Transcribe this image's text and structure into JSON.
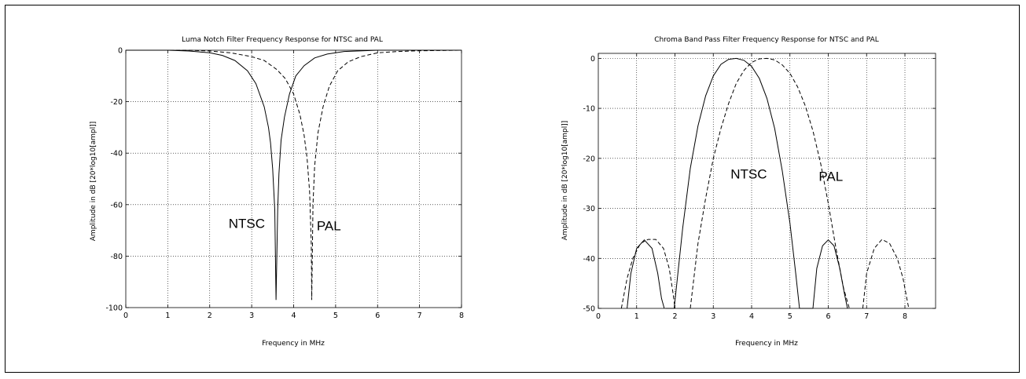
{
  "chart_data": [
    {
      "type": "line",
      "title": "Luma Notch Filter Frequency Response for NTSC and PAL",
      "xlabel": "Frequency in MHz",
      "ylabel": "Amplitude in dB [20*log10[ampl]]",
      "xlim": [
        0,
        8
      ],
      "ylim": [
        -100,
        0
      ],
      "xticks": [
        0,
        1,
        2,
        3,
        4,
        5,
        6,
        7,
        8
      ],
      "yticks": [
        0,
        -20,
        -40,
        -60,
        -80,
        -100
      ],
      "grid": true,
      "annotations": [
        {
          "text": "NTSC",
          "x": 2.45,
          "y": -69
        },
        {
          "text": "PAL",
          "x": 4.55,
          "y": -70
        }
      ],
      "series": [
        {
          "label": "NTSC",
          "style": "solid",
          "x": [
            0,
            1.0,
            1.5,
            2.0,
            2.3,
            2.6,
            2.9,
            3.1,
            3.3,
            3.4,
            3.45,
            3.5,
            3.55,
            3.58,
            3.58,
            3.62,
            3.65,
            3.7,
            3.78,
            3.9,
            4.05,
            4.25,
            4.5,
            4.8,
            5.2,
            6.0,
            8.0
          ],
          "y": [
            0,
            0,
            -0.3,
            -1,
            -2,
            -4,
            -8,
            -13,
            -22,
            -30,
            -36,
            -46,
            -62,
            -97,
            -97,
            -62,
            -48,
            -35,
            -26,
            -17,
            -10,
            -6,
            -3,
            -1.5,
            -0.5,
            0,
            0
          ]
        },
        {
          "label": "PAL",
          "style": "dashed",
          "x": [
            0,
            1.5,
            2.0,
            2.5,
            3.0,
            3.3,
            3.6,
            3.8,
            4.0,
            4.15,
            4.25,
            4.32,
            4.38,
            4.42,
            4.43,
            4.43,
            4.46,
            4.5,
            4.58,
            4.7,
            4.85,
            5.05,
            5.3,
            5.6,
            6.0,
            6.5,
            7.0,
            8.0
          ],
          "y": [
            0,
            0,
            -0.3,
            -1,
            -2.5,
            -4,
            -7.5,
            -11,
            -17,
            -25,
            -33,
            -42,
            -55,
            -75,
            -97,
            -97,
            -60,
            -45,
            -32,
            -22,
            -14,
            -8,
            -4.5,
            -2.5,
            -1,
            -0.5,
            -0.2,
            0
          ]
        }
      ]
    },
    {
      "type": "line",
      "title": "Chroma Band Pass Filter Frequency Response for NTSC and PAL",
      "xlabel": "Frequency in MHz",
      "ylabel": "Amplitude in dB [20*log10[ampl]]",
      "xlim": [
        0,
        8.8
      ],
      "ylim": [
        -50,
        1
      ],
      "xticks": [
        0,
        1,
        2,
        3,
        4,
        5,
        6,
        7,
        8
      ],
      "yticks": [
        0,
        -10,
        -20,
        -30,
        -40,
        -50
      ],
      "grid": true,
      "annotations": [
        {
          "text": "NTSC",
          "x": 3.45,
          "y": -24
        },
        {
          "text": "PAL",
          "x": 5.75,
          "y": -24.5
        }
      ],
      "series": [
        {
          "label": "NTSC",
          "style": "solid",
          "segments": [
            {
              "x": [
                0.75,
                0.85,
                1.0,
                1.2,
                1.4,
                1.55,
                1.65,
                1.72
              ],
              "y": [
                -50,
                -43,
                -38,
                -36.3,
                -38,
                -43,
                -48,
                -50
              ]
            },
            {
              "x": [
                1.75,
                1.75,
                1.98,
                1.98
              ],
              "y": [
                -50,
                -50,
                -50,
                -50
              ]
            },
            {
              "x": [
                1.98,
                2.2,
                2.4,
                2.6,
                2.8,
                3.0,
                3.2,
                3.4,
                3.6,
                3.8,
                4.0,
                4.2,
                4.4,
                4.6,
                4.8,
                5.0,
                5.15,
                5.25
              ],
              "y": [
                -50,
                -34,
                -22,
                -13.5,
                -7.5,
                -3.5,
                -1.2,
                -0.2,
                0,
                -0.4,
                -1.6,
                -4,
                -8,
                -14,
                -22.5,
                -33,
                -43,
                -50
              ]
            },
            {
              "x": [
                5.25,
                5.6
              ],
              "y": [
                -50,
                -50
              ]
            },
            {
              "x": [
                5.6,
                5.7,
                5.85,
                6.0,
                6.15,
                6.3,
                6.42,
                6.5
              ],
              "y": [
                -50,
                -42,
                -37.5,
                -36.3,
                -37.5,
                -42,
                -47,
                -50
              ]
            }
          ]
        },
        {
          "label": "PAL",
          "style": "dashed",
          "segments": [
            {
              "x": [
                0.6,
                0.75,
                0.9,
                1.1,
                1.3,
                1.5,
                1.7,
                1.85,
                1.95,
                2.0
              ],
              "y": [
                -50,
                -44,
                -40,
                -37,
                -36.2,
                -36.2,
                -38,
                -42,
                -47,
                -50
              ]
            },
            {
              "x": [
                2.4,
                2.6,
                2.8,
                3.0,
                3.2,
                3.4,
                3.6,
                3.8,
                4.0,
                4.2,
                4.4,
                4.6,
                4.8,
                5.0,
                5.2,
                5.4,
                5.6,
                5.8,
                6.0,
                6.2,
                6.4,
                6.55
              ],
              "y": [
                -50,
                -37,
                -28,
                -20,
                -14,
                -9,
                -5,
                -2.4,
                -0.8,
                -0.1,
                0,
                -0.3,
                -1.3,
                -3,
                -5.7,
                -9.5,
                -14.5,
                -21,
                -29,
                -38,
                -46,
                -50
              ]
            },
            {
              "x": [
                6.9,
                7.0,
                7.2,
                7.4,
                7.6,
                7.8,
                7.95,
                8.05,
                8.1
              ],
              "y": [
                -50,
                -43,
                -38,
                -36.2,
                -37,
                -40,
                -44,
                -48,
                -50
              ]
            }
          ]
        }
      ]
    }
  ]
}
